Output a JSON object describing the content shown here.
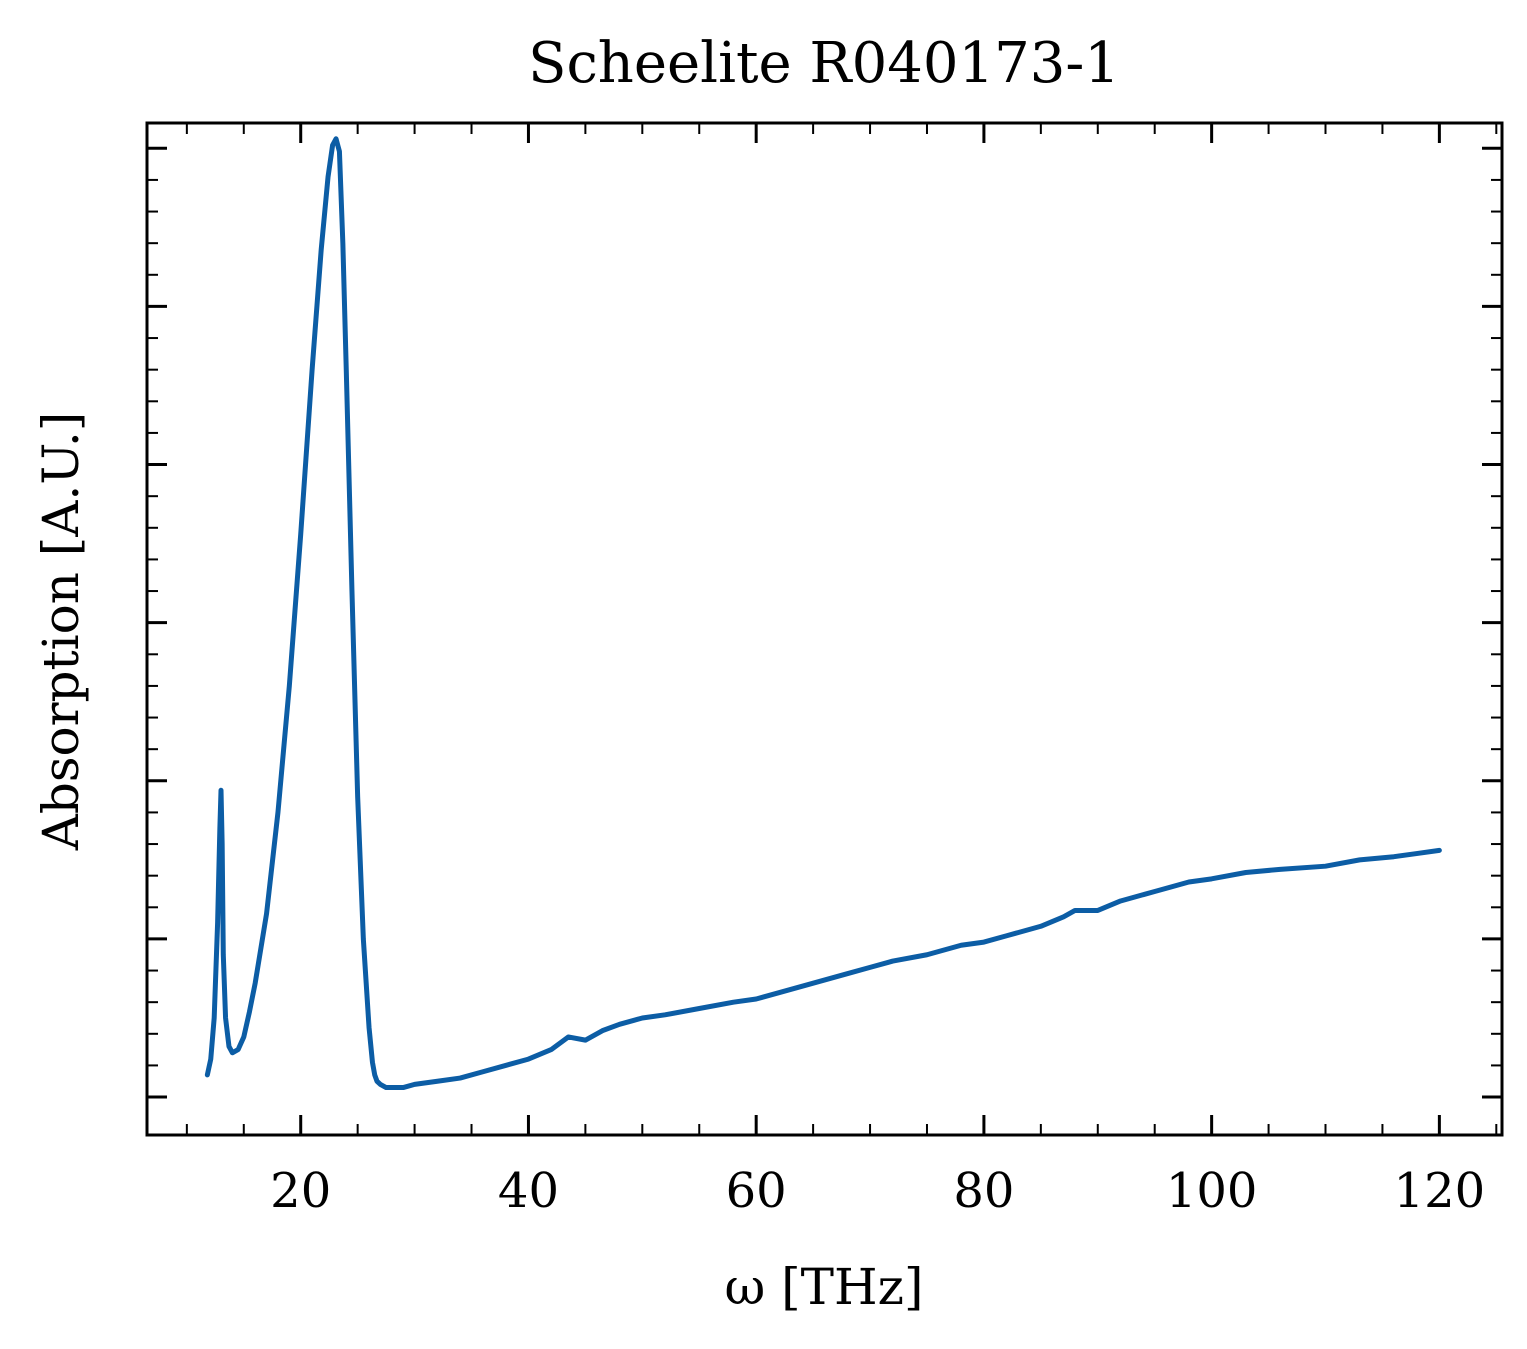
{
  "chart_data": {
    "type": "line",
    "title": "Scheelite R040173-1",
    "xlabel": "ω [THz]",
    "ylabel": "Absorption [A.U.]",
    "xlim": [
      6.5,
      125.5
    ],
    "ylim": [
      -0.12,
      3.08
    ],
    "x_ticks": [
      20,
      40,
      60,
      80,
      100,
      120
    ],
    "x_tick_labels": [
      "20",
      "40",
      "60",
      "80",
      "100",
      "120"
    ],
    "y_ticks": [
      0,
      0.5,
      1.0,
      1.5,
      2.0,
      2.5,
      3.0
    ],
    "y_tick_labels_shown": false,
    "x_minor_ticks": [
      10,
      15,
      25,
      30,
      35,
      45,
      50,
      55,
      65,
      70,
      75,
      85,
      90,
      95,
      105,
      110,
      115,
      125
    ],
    "y_minor_ticks": [
      0.1,
      0.2,
      0.3,
      0.4,
      0.6,
      0.7,
      0.8,
      0.9,
      1.1,
      1.2,
      1.3,
      1.4,
      1.6,
      1.7,
      1.8,
      1.9,
      2.1,
      2.2,
      2.3,
      2.4,
      2.6,
      2.7,
      2.8,
      2.9
    ],
    "grid": false,
    "legend": "none",
    "line_color": "#0C5DA5",
    "series": [
      {
        "x": [
          11.8,
          12.1,
          12.4,
          12.7,
          12.9,
          13.0,
          13.1,
          13.2,
          13.4,
          13.7,
          14.0,
          14.5,
          15.0,
          15.5,
          16.0,
          17.0,
          18.0,
          19.0,
          20.0,
          21.0,
          21.8,
          22.4,
          22.8,
          23.1,
          23.4,
          23.7,
          24.0,
          24.5,
          25.0,
          25.5,
          26.0,
          26.3,
          26.5,
          26.7,
          27.0,
          27.5,
          28.0,
          29.0,
          30.0,
          32.0,
          34.0,
          36.0,
          38.0,
          40.0,
          42.0,
          43.5,
          45.0,
          46.5,
          48.0,
          50.0,
          52.0,
          55.0,
          58.0,
          60.0,
          62.0,
          65.0,
          68.0,
          70.0,
          72.0,
          75.0,
          78.0,
          80.0,
          82.0,
          85.0,
          87.0,
          88.0,
          90.0,
          92.0,
          95.0,
          98.0,
          100.0,
          103.0,
          106.0,
          110.0,
          113.0,
          116.0,
          118.0,
          120.0
        ],
        "y": [
          0.07,
          0.12,
          0.25,
          0.55,
          0.85,
          0.97,
          0.8,
          0.45,
          0.25,
          0.16,
          0.14,
          0.15,
          0.19,
          0.27,
          0.36,
          0.58,
          0.9,
          1.3,
          1.78,
          2.3,
          2.68,
          2.91,
          3.01,
          3.03,
          2.99,
          2.7,
          2.3,
          1.6,
          0.95,
          0.5,
          0.22,
          0.11,
          0.07,
          0.05,
          0.04,
          0.03,
          0.03,
          0.03,
          0.04,
          0.05,
          0.06,
          0.08,
          0.1,
          0.12,
          0.15,
          0.19,
          0.18,
          0.21,
          0.23,
          0.25,
          0.26,
          0.28,
          0.3,
          0.31,
          0.33,
          0.36,
          0.39,
          0.41,
          0.43,
          0.45,
          0.48,
          0.49,
          0.51,
          0.54,
          0.57,
          0.59,
          0.59,
          0.62,
          0.65,
          0.68,
          0.69,
          0.71,
          0.72,
          0.73,
          0.75,
          0.76,
          0.77,
          0.78
        ]
      }
    ]
  }
}
